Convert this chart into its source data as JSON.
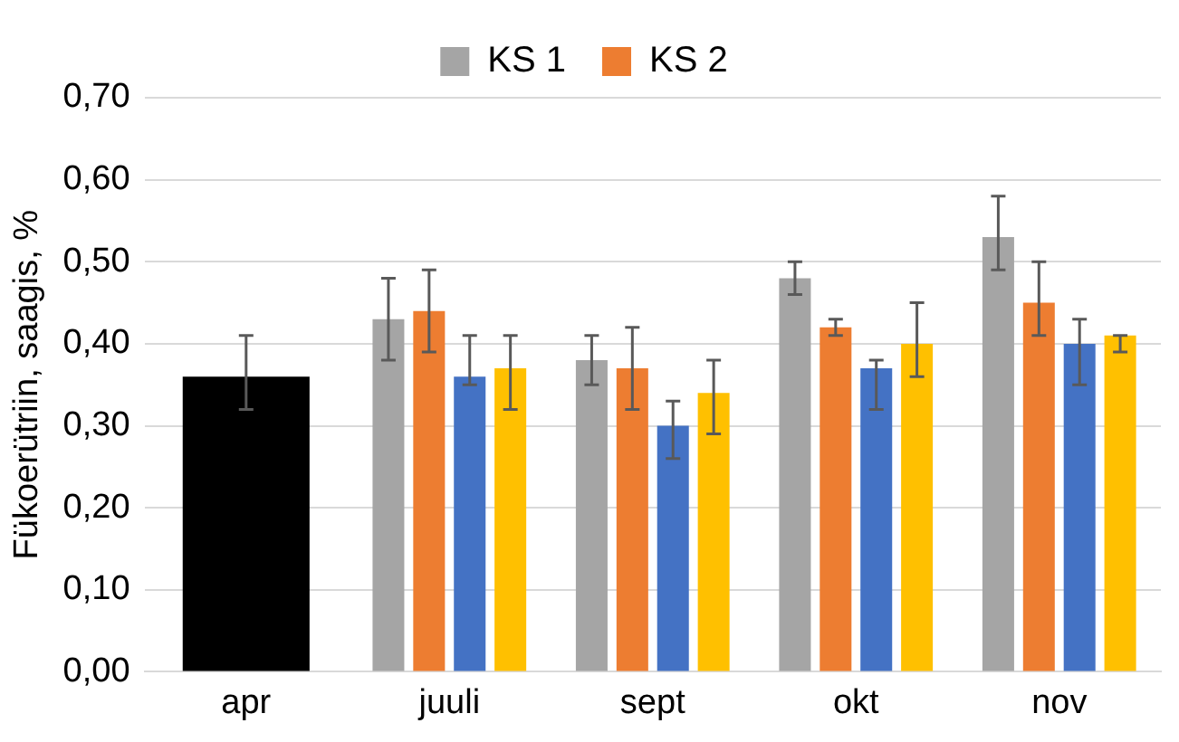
{
  "chart_data": {
    "type": "bar",
    "ylabel": "Fükoerütriin, saagis, %",
    "categories": [
      "apr",
      "juuli",
      "sept",
      "okt",
      "nov"
    ],
    "series": [
      {
        "color": "#000000",
        "values": [
          0.36,
          null,
          null,
          null,
          null
        ],
        "errors": [
          [
            0.32,
            0.41
          ],
          null,
          null,
          null,
          null
        ]
      },
      {
        "name": "KS 1",
        "color": "#a5a5a5",
        "values": [
          null,
          0.43,
          0.38,
          0.48,
          0.53
        ],
        "errors": [
          null,
          [
            0.38,
            0.48
          ],
          [
            0.35,
            0.41
          ],
          [
            0.46,
            0.5
          ],
          [
            0.49,
            0.58
          ]
        ]
      },
      {
        "name": "KS 2",
        "color": "#ed7d31",
        "values": [
          null,
          0.44,
          0.37,
          0.42,
          0.45
        ],
        "errors": [
          null,
          [
            0.39,
            0.49
          ],
          [
            0.32,
            0.42
          ],
          [
            0.41,
            0.43
          ],
          [
            0.41,
            0.5
          ]
        ]
      },
      {
        "color": "#4472c4",
        "values": [
          null,
          0.36,
          0.3,
          0.37,
          0.4
        ],
        "errors": [
          null,
          [
            0.35,
            0.41
          ],
          [
            0.26,
            0.33
          ],
          [
            0.32,
            0.38
          ],
          [
            0.35,
            0.43
          ]
        ]
      },
      {
        "color": "#ffc000",
        "values": [
          null,
          0.37,
          0.34,
          0.4,
          0.41
        ],
        "errors": [
          null,
          [
            0.32,
            0.41
          ],
          [
            0.29,
            0.38
          ],
          [
            0.36,
            0.45
          ],
          [
            0.39,
            0.41
          ]
        ]
      }
    ],
    "ylim": [
      0,
      0.7
    ],
    "yticks": [
      {
        "value": 0,
        "label": "0,00"
      },
      {
        "value": 0.1,
        "label": "0,10"
      },
      {
        "value": 0.2,
        "label": "0,20"
      },
      {
        "value": 0.3,
        "label": "0,30"
      },
      {
        "value": 0.4,
        "label": "0,40"
      },
      {
        "value": 0.5,
        "label": "0,50"
      },
      {
        "value": 0.6,
        "label": "0,60"
      },
      {
        "value": 0.7,
        "label": "0,70"
      }
    ],
    "grid": "y",
    "legend": "top"
  }
}
